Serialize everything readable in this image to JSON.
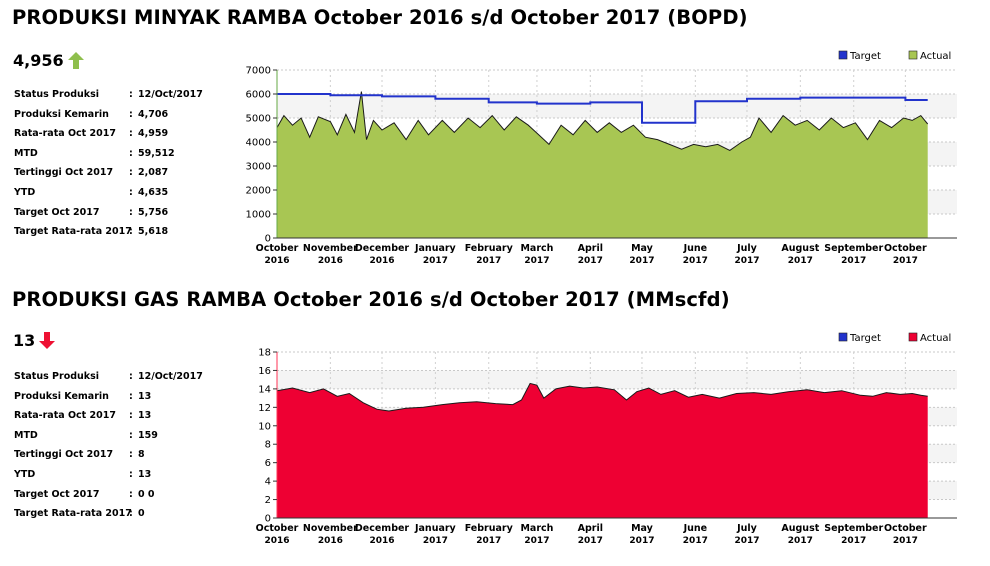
{
  "oil": {
    "title": "PRODUKSI MINYAK RAMBA October 2016 s/d October 2017 (BOPD)",
    "value": "4,956",
    "trend": "up",
    "trend_color": "#8fbf4d",
    "stats": [
      {
        "label": "Status Produksi",
        "value": "12/Oct/2017"
      },
      {
        "label": "Produksi Kemarin",
        "value": "4,706"
      },
      {
        "label": "Rata-rata Oct 2017",
        "value": "4,959"
      },
      {
        "label": "MTD",
        "value": "59,512"
      },
      {
        "label": "Tertinggi Oct 2017",
        "value": "2,087"
      },
      {
        "label": "YTD",
        "value": "4,635"
      },
      {
        "label": "Target Oct 2017",
        "value": "5,756"
      },
      {
        "label": "Target Rata-rata 2017",
        "value": "5,618"
      }
    ]
  },
  "gas": {
    "title": "PRODUKSI GAS RAMBA October 2016 s/d October 2017 (MMscfd)",
    "value": "13",
    "trend": "down",
    "trend_color": "#ee1133",
    "stats": [
      {
        "label": "Status Produksi",
        "value": "12/Oct/2017"
      },
      {
        "label": "Produksi Kemarin",
        "value": "13"
      },
      {
        "label": "Rata-rata Oct 2017",
        "value": "13"
      },
      {
        "label": "MTD",
        "value": "159"
      },
      {
        "label": "Tertinggi Oct 2017",
        "value": "8"
      },
      {
        "label": "YTD",
        "value": "13"
      },
      {
        "label": "Target Oct 2017",
        "value": "0 0"
      },
      {
        "label": "Target Rata-rata 2017",
        "value": "0"
      }
    ]
  },
  "chart_data": [
    {
      "type": "area",
      "title": "PRODUKSI MINYAK RAMBA October 2016 s/d October 2017 (BOPD)",
      "ylim": [
        0,
        7000
      ],
      "yticks": [
        0,
        1000,
        2000,
        3000,
        4000,
        5000,
        6000,
        7000
      ],
      "xlim": [
        "2016-10-01",
        "2017-10-31"
      ],
      "x_tick_labels": [
        [
          "October",
          "2016"
        ],
        [
          "November",
          "2016"
        ],
        [
          "December",
          "2016"
        ],
        [
          "January",
          "2017"
        ],
        [
          "February",
          "2017"
        ],
        [
          "March",
          "2017"
        ],
        [
          "April",
          "2017"
        ],
        [
          "May",
          "2017"
        ],
        [
          "June",
          "2017"
        ],
        [
          "July",
          "2017"
        ],
        [
          "August",
          "2017"
        ],
        [
          "September",
          "2017"
        ],
        [
          "October",
          "2017"
        ]
      ],
      "grid": true,
      "legend_position": "top-right",
      "legend": [
        {
          "name": "Target",
          "color": "#2233cc"
        },
        {
          "name": "Actual",
          "color": "#a8c653"
        }
      ],
      "series": [
        {
          "name": "Actual",
          "kind": "area",
          "color": "#a8c653",
          "line_color": "#1a1a1a",
          "points": [
            [
              "2016-10-01",
              4600
            ],
            [
              "2016-10-05",
              5100
            ],
            [
              "2016-10-10",
              4700
            ],
            [
              "2016-10-15",
              5000
            ],
            [
              "2016-10-20",
              4200
            ],
            [
              "2016-10-25",
              5050
            ],
            [
              "2016-11-01",
              4850
            ],
            [
              "2016-11-05",
              4300
            ],
            [
              "2016-11-10",
              5150
            ],
            [
              "2016-11-15",
              4400
            ],
            [
              "2016-11-19",
              6100
            ],
            [
              "2016-11-22",
              4100
            ],
            [
              "2016-11-26",
              4900
            ],
            [
              "2016-12-01",
              4500
            ],
            [
              "2016-12-08",
              4800
            ],
            [
              "2016-12-15",
              4100
            ],
            [
              "2016-12-22",
              4900
            ],
            [
              "2016-12-28",
              4300
            ],
            [
              "2017-01-05",
              4900
            ],
            [
              "2017-01-12",
              4400
            ],
            [
              "2017-01-20",
              5000
            ],
            [
              "2017-01-27",
              4600
            ],
            [
              "2017-02-03",
              5100
            ],
            [
              "2017-02-10",
              4500
            ],
            [
              "2017-02-17",
              5050
            ],
            [
              "2017-02-24",
              4700
            ],
            [
              "2017-03-02",
              4300
            ],
            [
              "2017-03-08",
              3900
            ],
            [
              "2017-03-15",
              4700
            ],
            [
              "2017-03-22",
              4300
            ],
            [
              "2017-03-29",
              4900
            ],
            [
              "2017-04-05",
              4400
            ],
            [
              "2017-04-12",
              4800
            ],
            [
              "2017-04-19",
              4400
            ],
            [
              "2017-04-26",
              4700
            ],
            [
              "2017-05-03",
              4200
            ],
            [
              "2017-05-10",
              4100
            ],
            [
              "2017-05-17",
              3900
            ],
            [
              "2017-05-24",
              3700
            ],
            [
              "2017-05-31",
              3900
            ],
            [
              "2017-06-07",
              3800
            ],
            [
              "2017-06-14",
              3900
            ],
            [
              "2017-06-21",
              3650
            ],
            [
              "2017-06-28",
              4000
            ],
            [
              "2017-07-03",
              4200
            ],
            [
              "2017-07-08",
              5000
            ],
            [
              "2017-07-15",
              4400
            ],
            [
              "2017-07-22",
              5100
            ],
            [
              "2017-07-29",
              4700
            ],
            [
              "2017-08-05",
              4900
            ],
            [
              "2017-08-12",
              4500
            ],
            [
              "2017-08-19",
              5000
            ],
            [
              "2017-08-26",
              4600
            ],
            [
              "2017-09-02",
              4800
            ],
            [
              "2017-09-09",
              4100
            ],
            [
              "2017-09-16",
              4900
            ],
            [
              "2017-09-23",
              4600
            ],
            [
              "2017-09-30",
              5000
            ],
            [
              "2017-10-05",
              4900
            ],
            [
              "2017-10-10",
              5100
            ],
            [
              "2017-10-14",
              4750
            ]
          ]
        },
        {
          "name": "Target",
          "kind": "line",
          "color": "#2233cc",
          "points": [
            [
              "2016-10-01",
              6000
            ],
            [
              "2016-11-01",
              6000
            ],
            [
              "2016-11-01",
              5950
            ],
            [
              "2016-12-01",
              5950
            ],
            [
              "2016-12-01",
              5900
            ],
            [
              "2017-01-01",
              5900
            ],
            [
              "2017-01-01",
              5800
            ],
            [
              "2017-02-01",
              5800
            ],
            [
              "2017-02-01",
              5650
            ],
            [
              "2017-03-01",
              5650
            ],
            [
              "2017-03-01",
              5600
            ],
            [
              "2017-04-01",
              5600
            ],
            [
              "2017-04-01",
              5650
            ],
            [
              "2017-05-01",
              5650
            ],
            [
              "2017-05-01",
              4800
            ],
            [
              "2017-06-01",
              4800
            ],
            [
              "2017-06-01",
              5700
            ],
            [
              "2017-07-01",
              5700
            ],
            [
              "2017-07-01",
              5800
            ],
            [
              "2017-08-01",
              5800
            ],
            [
              "2017-08-01",
              5850
            ],
            [
              "2017-10-01",
              5850
            ],
            [
              "2017-10-01",
              5750
            ],
            [
              "2017-10-14",
              5750
            ]
          ]
        }
      ]
    },
    {
      "type": "area",
      "title": "PRODUKSI GAS RAMBA October 2016 s/d October 2017 (MMscfd)",
      "ylim": [
        0,
        18
      ],
      "yticks": [
        0,
        2,
        4,
        6,
        8,
        10,
        12,
        14,
        16,
        18
      ],
      "xlim": [
        "2016-10-01",
        "2017-10-31"
      ],
      "x_tick_labels": [
        [
          "October",
          "2016"
        ],
        [
          "November",
          "2016"
        ],
        [
          "December",
          "2016"
        ],
        [
          "January",
          "2017"
        ],
        [
          "February",
          "2017"
        ],
        [
          "March",
          "2017"
        ],
        [
          "April",
          "2017"
        ],
        [
          "May",
          "2017"
        ],
        [
          "June",
          "2017"
        ],
        [
          "July",
          "2017"
        ],
        [
          "August",
          "2017"
        ],
        [
          "September",
          "2017"
        ],
        [
          "October",
          "2017"
        ]
      ],
      "grid": true,
      "legend_position": "top-right",
      "legend": [
        {
          "name": "Target",
          "color": "#2233cc"
        },
        {
          "name": "Actual",
          "color": "#ee0033"
        }
      ],
      "series": [
        {
          "name": "Actual",
          "kind": "area",
          "color": "#ee0033",
          "line_color": "#1a1a1a",
          "points": [
            [
              "2016-10-01",
              13.8
            ],
            [
              "2016-10-10",
              14.1
            ],
            [
              "2016-10-20",
              13.6
            ],
            [
              "2016-10-28",
              14.0
            ],
            [
              "2016-11-05",
              13.2
            ],
            [
              "2016-11-12",
              13.5
            ],
            [
              "2016-11-20",
              12.5
            ],
            [
              "2016-11-28",
              11.8
            ],
            [
              "2016-12-05",
              11.6
            ],
            [
              "2016-12-15",
              11.9
            ],
            [
              "2016-12-25",
              12.0
            ],
            [
              "2017-01-05",
              12.3
            ],
            [
              "2017-01-15",
              12.5
            ],
            [
              "2017-01-25",
              12.6
            ],
            [
              "2017-02-05",
              12.4
            ],
            [
              "2017-02-15",
              12.3
            ],
            [
              "2017-02-20",
              12.8
            ],
            [
              "2017-02-25",
              14.6
            ],
            [
              "2017-03-01",
              14.4
            ],
            [
              "2017-03-05",
              13.0
            ],
            [
              "2017-03-12",
              14.0
            ],
            [
              "2017-03-20",
              14.3
            ],
            [
              "2017-03-28",
              14.1
            ],
            [
              "2017-04-05",
              14.2
            ],
            [
              "2017-04-15",
              13.9
            ],
            [
              "2017-04-22",
              12.8
            ],
            [
              "2017-04-28",
              13.7
            ],
            [
              "2017-05-05",
              14.1
            ],
            [
              "2017-05-12",
              13.4
            ],
            [
              "2017-05-20",
              13.8
            ],
            [
              "2017-05-28",
              13.1
            ],
            [
              "2017-06-05",
              13.4
            ],
            [
              "2017-06-15",
              13.0
            ],
            [
              "2017-06-25",
              13.5
            ],
            [
              "2017-07-05",
              13.6
            ],
            [
              "2017-07-15",
              13.4
            ],
            [
              "2017-07-25",
              13.7
            ],
            [
              "2017-08-05",
              13.9
            ],
            [
              "2017-08-15",
              13.6
            ],
            [
              "2017-08-25",
              13.8
            ],
            [
              "2017-09-05",
              13.3
            ],
            [
              "2017-09-12",
              13.2
            ],
            [
              "2017-09-20",
              13.6
            ],
            [
              "2017-09-28",
              13.4
            ],
            [
              "2017-10-05",
              13.5
            ],
            [
              "2017-10-10",
              13.3
            ],
            [
              "2017-10-14",
              13.2
            ]
          ]
        }
      ]
    }
  ]
}
